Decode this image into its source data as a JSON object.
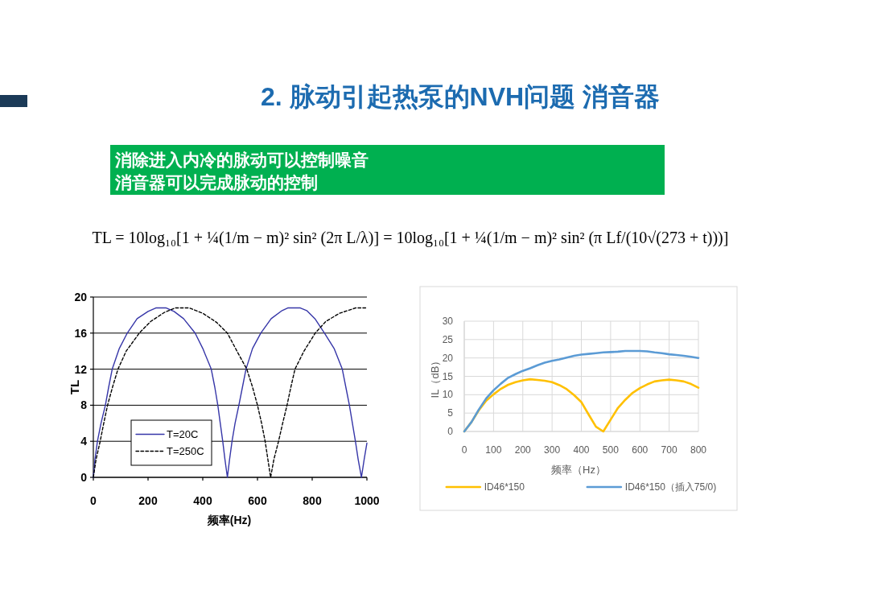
{
  "chart_data": [
    {
      "type": "other",
      "title": "2. 脉动引起热泵的NVH问题 消音器",
      "annotations": [
        "消除进入内冷的脉动可以控制噪音",
        "消音器可以完成脉动的控制",
        "TL = 10log₁₀[1 + ¼(1/m − m)² sin² (2π L/λ)] = 10log₁₀[1 + ¼(1/m − m)² sin² (π Lf/(10√(273 + t)))]"
      ]
    },
    {
      "type": "line",
      "xlabel": "频率(Hz)",
      "ylabel": "TL",
      "xlim": [
        0,
        1000
      ],
      "xticks": [
        0,
        200,
        400,
        600,
        800,
        1000
      ],
      "ylim": [
        0,
        20
      ],
      "yticks": [
        0,
        4,
        8,
        12,
        16,
        20
      ],
      "grid": "y",
      "legend": "bottom left",
      "series": [
        {
          "name": "T=20C",
          "color": "#3636a8",
          "line_style": "solid",
          "x": [
            0,
            6,
            15,
            28,
            44,
            56,
            69,
            95,
            124,
            160,
            200,
            230,
            265,
            295,
            330,
            372,
            400,
            431,
            444,
            455,
            464,
            473,
            481,
            490,
            498,
            507,
            518,
            532,
            545,
            558,
            582,
            612,
            650,
            690,
            712,
            755,
            780,
            810,
            845,
            880,
            910,
            923,
            936,
            947,
            958,
            968,
            980,
            990,
            1000
          ],
          "values": [
            0,
            2,
            4,
            6,
            8,
            10,
            12,
            14.3,
            16,
            17.6,
            18.4,
            18.8,
            18.8,
            18.4,
            17.6,
            16,
            14.3,
            12,
            10,
            8,
            6,
            4,
            2,
            0,
            2,
            4,
            6,
            8,
            10,
            12,
            14.3,
            16,
            17.6,
            18.5,
            18.8,
            18.8,
            18.5,
            17.6,
            16,
            14.3,
            12,
            10,
            8,
            6,
            4,
            2,
            0,
            2,
            3.8
          ]
        },
        {
          "name": "T=250C",
          "color": "#000000",
          "line_style": "dashed",
          "x": [
            0,
            10,
            25,
            38,
            52,
            70,
            90,
            120,
            168,
            210,
            260,
            300,
            350,
            400,
            450,
            490,
            525,
            561,
            582,
            600,
            615,
            628,
            638,
            648,
            660,
            677,
            692,
            708,
            722,
            737,
            770,
            811,
            850,
            900,
            960,
            1000
          ],
          "values": [
            0,
            2,
            4,
            6,
            8,
            10,
            12,
            14,
            16,
            17.3,
            18.3,
            18.8,
            18.8,
            18.2,
            17.2,
            16,
            14,
            12,
            10,
            8,
            6,
            4,
            2,
            0,
            2,
            4,
            6,
            8,
            10,
            12,
            14,
            16,
            17.3,
            18.2,
            18.8,
            18.8
          ]
        }
      ]
    },
    {
      "type": "line",
      "xlabel": "频率（Hz）",
      "ylabel": "IL（dB）",
      "x": [
        0,
        25,
        50,
        75,
        100,
        125,
        150,
        175,
        200,
        225,
        250,
        275,
        300,
        325,
        350,
        375,
        400,
        425,
        450,
        475,
        500,
        525,
        550,
        575,
        600,
        625,
        650,
        675,
        700,
        725,
        750,
        775,
        800
      ],
      "xlim": [
        0,
        800
      ],
      "xticks": [
        0,
        100,
        200,
        300,
        400,
        500,
        600,
        700,
        800
      ],
      "ylim": [
        0,
        30
      ],
      "yticks": [
        0,
        5,
        10,
        15,
        20,
        25,
        30
      ],
      "grid": true,
      "legend": "bottom",
      "series": [
        {
          "name": "ID46*150",
          "color": "#ffc000",
          "line_style": "solid",
          "values": [
            0,
            2.6,
            5.8,
            8.4,
            10.1,
            11.6,
            12.7,
            13.4,
            13.9,
            14.2,
            14.0,
            13.8,
            13.4,
            12.6,
            11.5,
            9.9,
            8.0,
            4.6,
            1.3,
            0,
            3.2,
            6.4,
            8.6,
            10.5,
            11.8,
            12.8,
            13.6,
            13.9,
            14.1,
            13.9,
            13.6,
            12.9,
            11.9
          ]
        },
        {
          "name": "ID46*150（插入75/0)",
          "color": "#5b9bd5",
          "line_style": "solid",
          "values": [
            0,
            2.6,
            6.0,
            9.0,
            11.2,
            13.0,
            14.6,
            15.6,
            16.5,
            17.2,
            18.0,
            18.7,
            19.2,
            19.6,
            20.1,
            20.6,
            20.9,
            21.1,
            21.3,
            21.5,
            21.6,
            21.7,
            21.9,
            21.9,
            21.9,
            21.8,
            21.5,
            21.3,
            21.0,
            20.8,
            20.6,
            20.3,
            20.0
          ]
        }
      ]
    }
  ]
}
